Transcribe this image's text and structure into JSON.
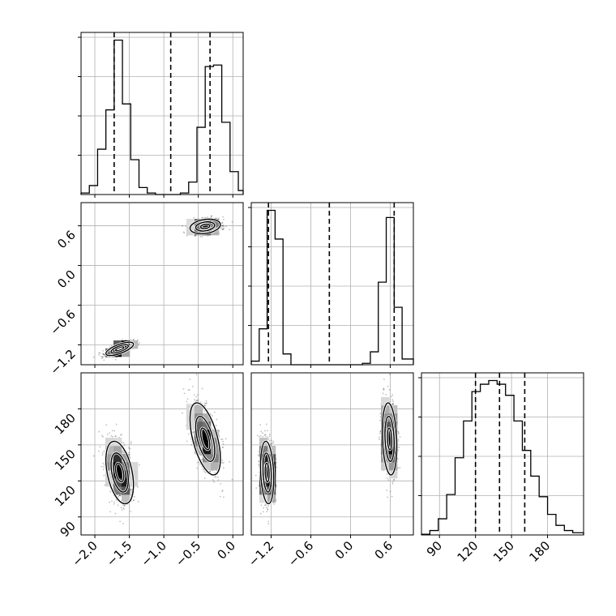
{
  "chart_data": {
    "type": "corner",
    "grid": true,
    "parameters": [
      {
        "range": [
          -2.2,
          0.15
        ],
        "ticks": [
          -2.0,
          -1.5,
          -1.0,
          -0.5,
          0.0
        ],
        "tick_labels": [
          "−2.0",
          "−1.5",
          "−1.0",
          "−0.5",
          "0.0"
        ],
        "quantiles": [
          -1.72,
          -0.9,
          -0.33
        ],
        "histogram": {
          "edges": [
            -2.2,
            -2.08,
            -1.96,
            -1.84,
            -1.72,
            -1.6,
            -1.48,
            -1.36,
            -1.24,
            -1.12,
            -1.0,
            -0.88,
            -0.76,
            -0.64,
            -0.52,
            -0.4,
            -0.28,
            -0.16,
            -0.04,
            0.08,
            0.15
          ],
          "counts": [
            0.3,
            1.8,
            9.1,
            17,
            31,
            18.2,
            7,
            1.4,
            0.3,
            0,
            0,
            0,
            0.3,
            2.5,
            13.5,
            25.7,
            26,
            14.5,
            4.6,
            0.8
          ]
        }
      },
      {
        "range": [
          -1.5,
          0.95
        ],
        "ticks": [
          -1.2,
          -0.6,
          0.0,
          0.6
        ],
        "tick_labels": [
          "−1.2",
          "−0.6",
          "0.0",
          "0.6"
        ],
        "quantiles": [
          -1.24,
          -0.32,
          0.66
        ],
        "histogram": {
          "edges": [
            -1.5,
            -1.38,
            -1.26,
            -1.14,
            -1.02,
            -0.9,
            -0.78,
            -0.66,
            -0.54,
            -0.42,
            -0.3,
            -0.18,
            -0.06,
            0.06,
            0.18,
            0.3,
            0.42,
            0.54,
            0.66,
            0.78,
            0.95
          ],
          "counts": [
            0.5,
            5,
            21.5,
            17.5,
            1.5,
            0,
            0,
            0,
            0,
            0,
            0,
            0,
            0,
            0,
            0.2,
            1.8,
            11.5,
            20.5,
            8,
            0.8
          ]
        }
      },
      {
        "range": [
          75,
          210
        ],
        "ticks": [
          90,
          120,
          150,
          180
        ],
        "tick_labels": [
          "90",
          "120",
          "150",
          "180"
        ],
        "quantiles": [
          120,
          140,
          161
        ],
        "histogram": {
          "edges": [
            75,
            82,
            89,
            96,
            103,
            110,
            117,
            124,
            131,
            138,
            145,
            152,
            159,
            166,
            173,
            180,
            187,
            194,
            201,
            210
          ],
          "counts": [
            0.1,
            0.6,
            2.2,
            5.5,
            10.5,
            15.5,
            19.5,
            20.5,
            21,
            20.5,
            19,
            15.5,
            11.5,
            8,
            5.2,
            2.8,
            1.3,
            0.6,
            0.3
          ]
        }
      }
    ],
    "modes": [
      {
        "mean": [
          -1.64,
          -1.26,
          127
        ],
        "sd": [
          0.1,
          0.05,
          13
        ],
        "corr": [
          [
            1,
            0.7,
            -0.4
          ],
          [
            0.7,
            1,
            -0.2
          ],
          [
            -0.4,
            -0.2,
            1
          ]
        ]
      },
      {
        "mean": [
          -0.4,
          0.59,
          155
        ],
        "sd": [
          0.11,
          0.055,
          15
        ],
        "corr": [
          [
            1,
            0.25,
            -0.55
          ],
          [
            0.25,
            1,
            -0.2
          ],
          [
            -0.55,
            -0.2,
            1
          ]
        ]
      }
    ]
  }
}
